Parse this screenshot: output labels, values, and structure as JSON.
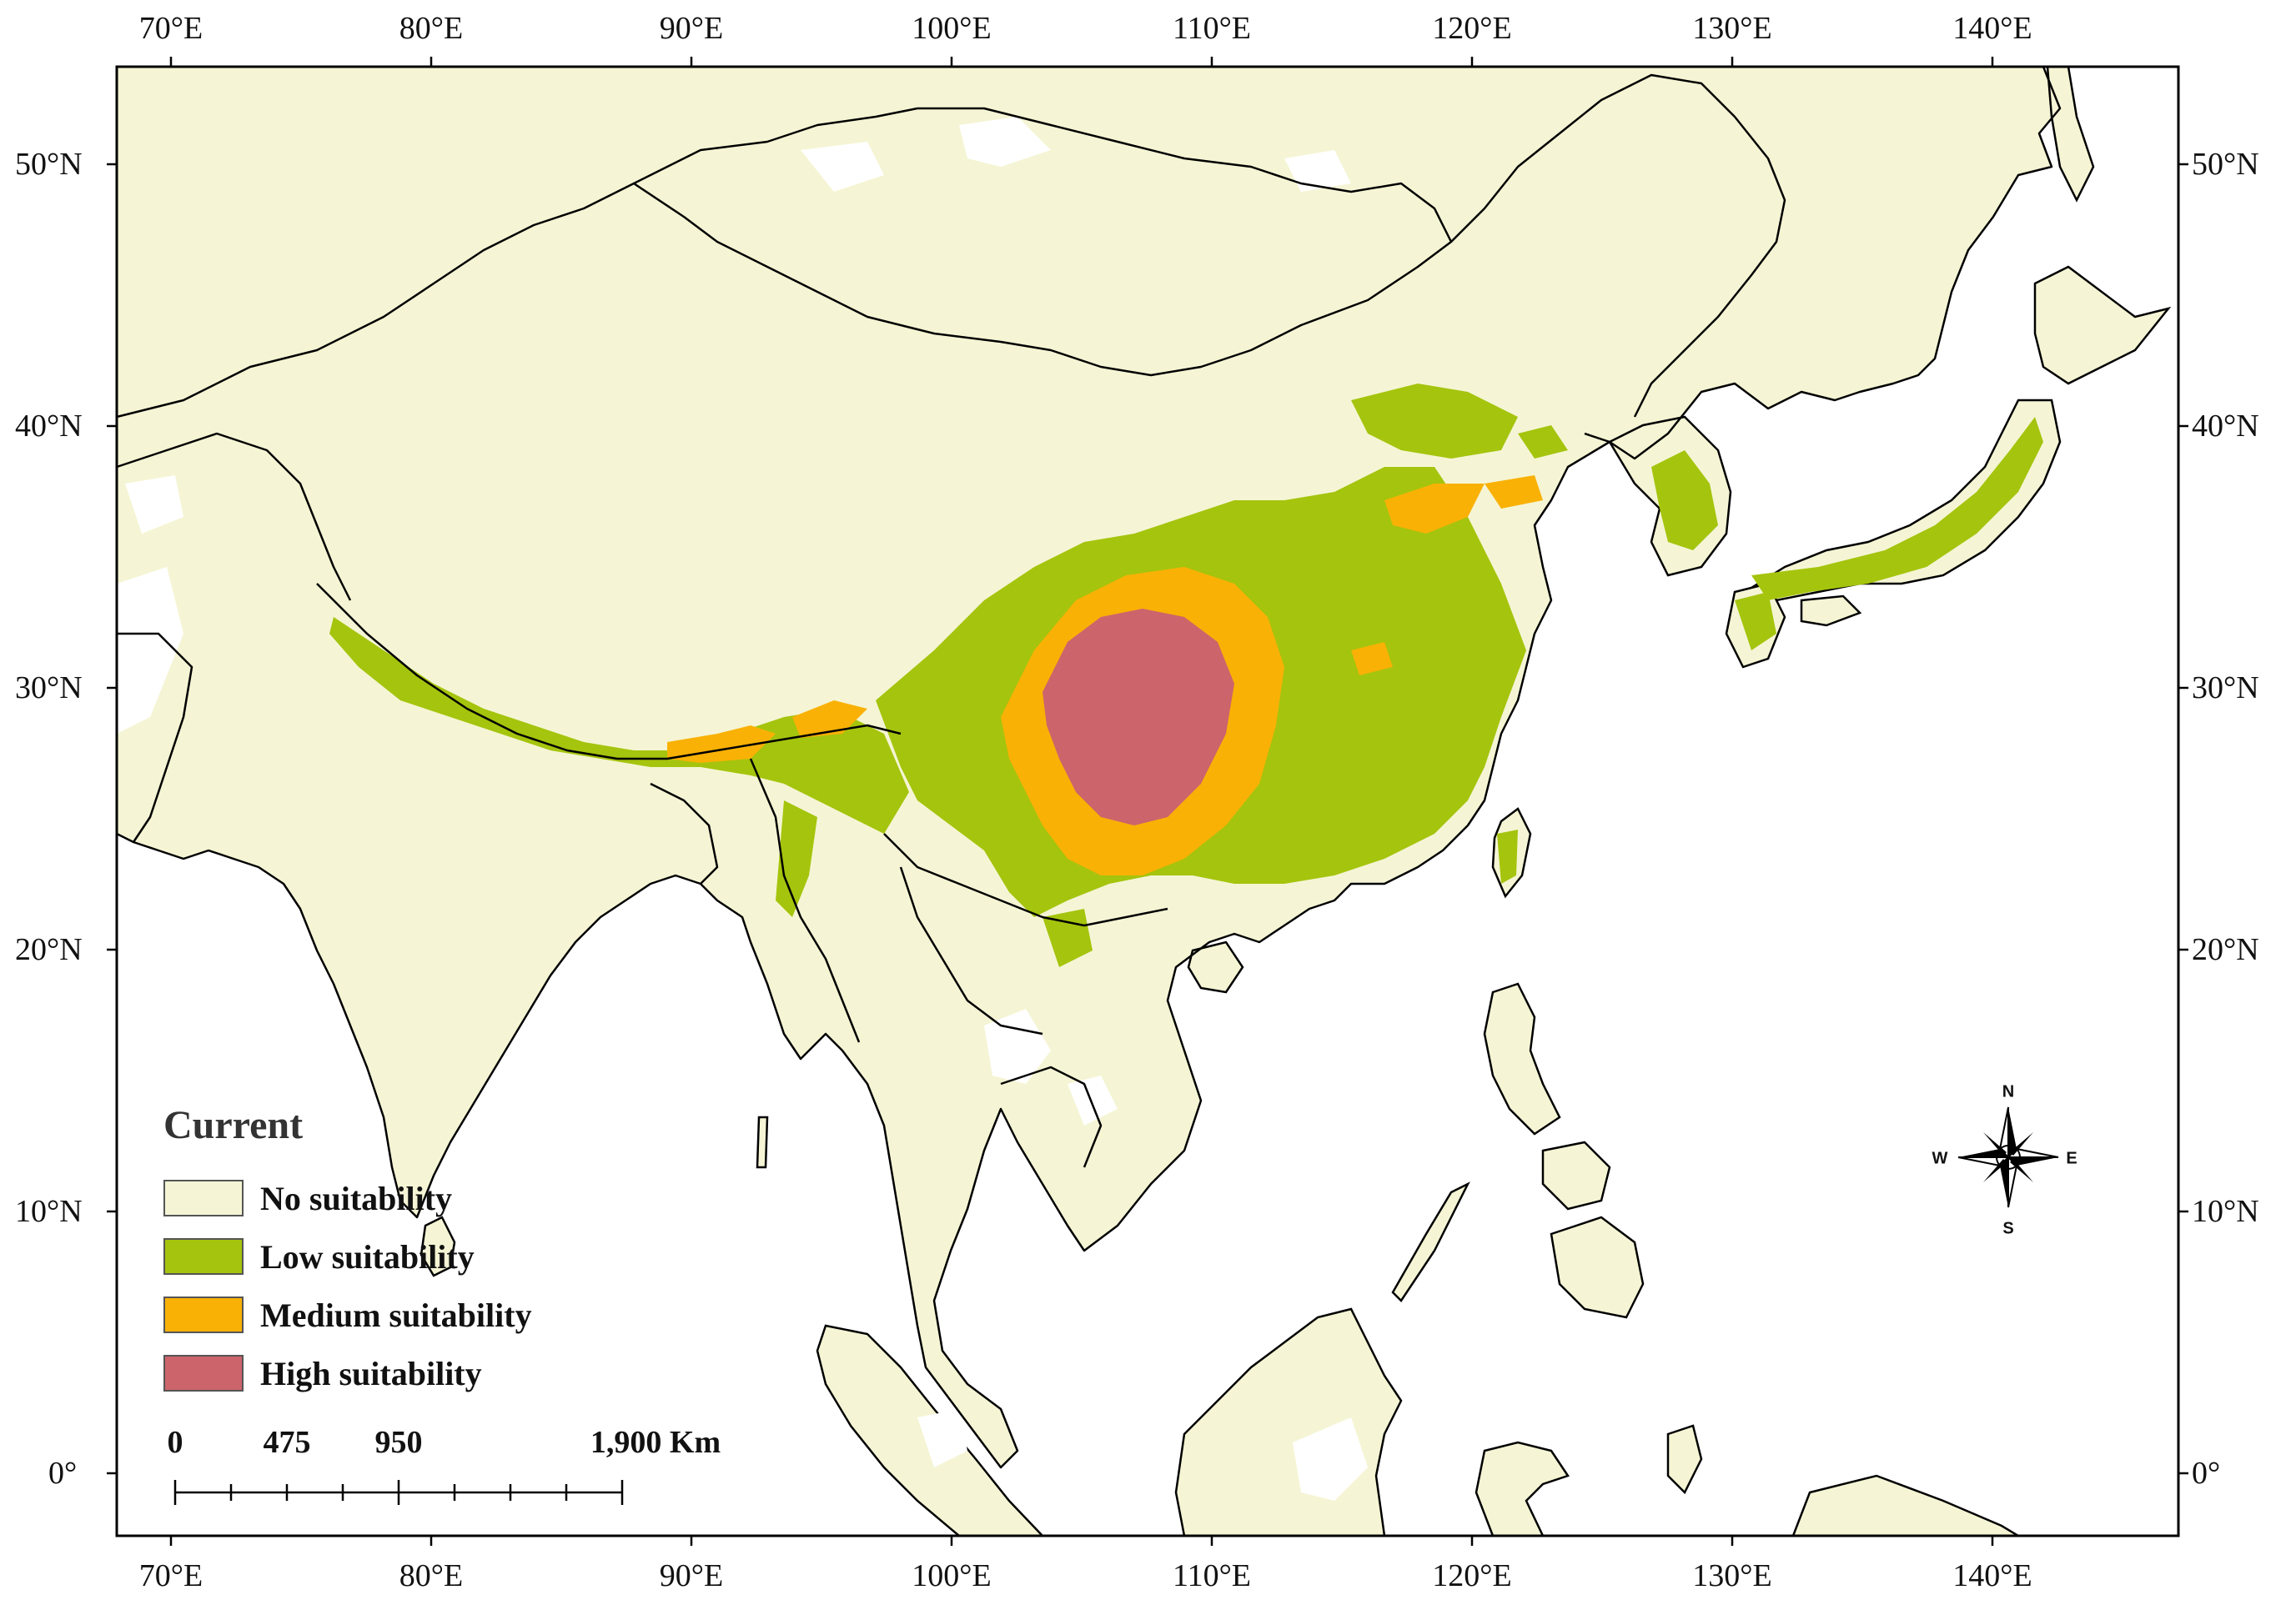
{
  "colors": {
    "no_suitability": "#F5F5D5",
    "low_suitability": "#A5C40D",
    "medium_suitability": "#F9B105",
    "high_suitability": "#CC646C",
    "ocean": "#FFFFFF",
    "border": "#000000"
  },
  "axes": {
    "top_labels": [
      "70°E",
      "80°E",
      "90°E",
      "100°E",
      "110°E",
      "120°E",
      "130°E",
      "140°E"
    ],
    "bottom_labels": [
      "70°E",
      "80°E",
      "90°E",
      "100°E",
      "110°E",
      "120°E",
      "130°E",
      "140°E"
    ],
    "left_labels": [
      "50°N",
      "40°N",
      "30°N",
      "20°N",
      "10°N",
      "0°"
    ],
    "right_labels": [
      "50°N",
      "40°N",
      "30°N",
      "20°N",
      "10°N",
      "0°"
    ]
  },
  "legend": {
    "title": "Current",
    "items": [
      {
        "label": "No suitability",
        "color": "#F5F5D5"
      },
      {
        "label": "Low suitability",
        "color": "#A5C40D"
      },
      {
        "label": "Medium suitability",
        "color": "#F9B105"
      },
      {
        "label": "High suitability",
        "color": "#CC646C"
      }
    ]
  },
  "scale_bar": {
    "labels": [
      "0",
      "475",
      "950",
      "1,900 Km"
    ]
  },
  "compass": {
    "n": "N",
    "s": "S",
    "e": "E",
    "w": "W"
  }
}
